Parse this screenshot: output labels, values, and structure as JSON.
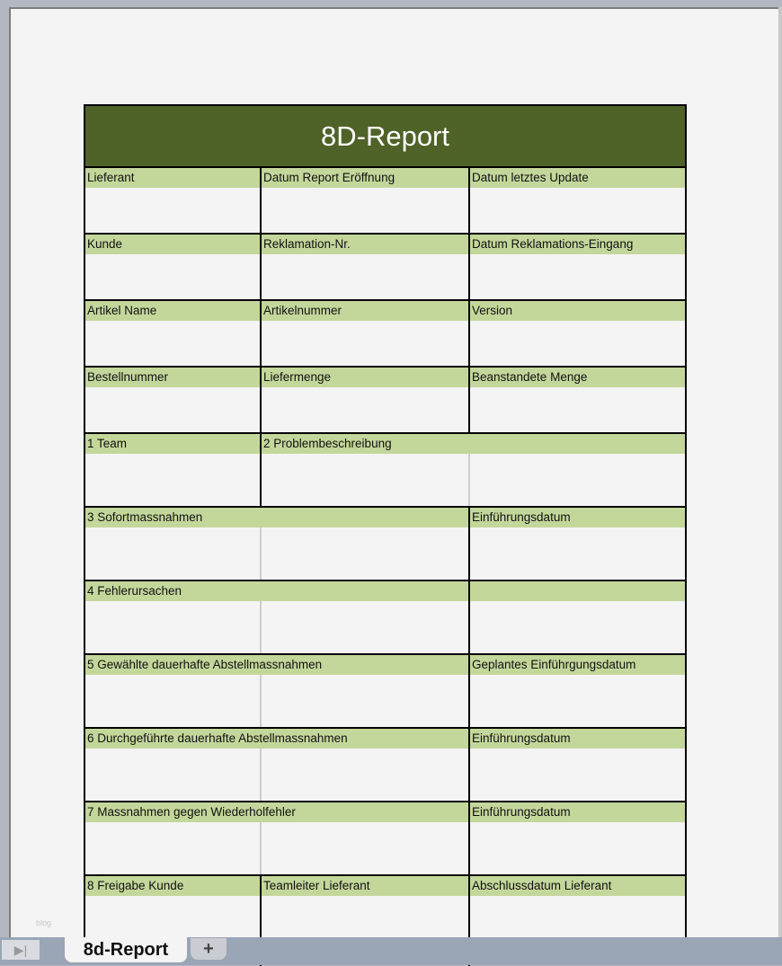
{
  "title": "8D-Report",
  "rows": [
    [
      "Lieferant",
      "Datum Report Eröffnung",
      "Datum letztes Update"
    ],
    [
      "Kunde",
      "Reklamation-Nr.",
      "Datum Reklamations-Eingang"
    ],
    [
      "Artikel Name",
      "Artikelnummer",
      "Version"
    ],
    [
      "Bestellnummer",
      "Liefermenge",
      "Beanstandete Menge"
    ],
    [
      "1 Team",
      "2 Problembeschreibung"
    ],
    [
      "3 Sofortmassnahmen",
      "Einführungsdatum"
    ],
    [
      "4 Fehlerursachen",
      ""
    ],
    [
      "5 Gewählte dauerhafte Abstellmassnahmen",
      "Geplantes Einführgungsdatum"
    ],
    [
      "6 Durchgeführte dauerhafte Abstellmassnahmen",
      "Einführungsdatum"
    ],
    [
      "7 Massnahmen gegen Wiederholfehler",
      "Einführungsdatum"
    ],
    [
      "8 Freigabe Kunde",
      "Teamleiter Lieferant",
      "Abschlussdatum Lieferant"
    ]
  ],
  "watermark": "blog",
  "sheet_tabs": {
    "nav_icon": "last-sheet-icon",
    "nav_glyph": "▶|",
    "active": "8d-Report",
    "add": "+"
  },
  "colors": {
    "header": "#4f6228",
    "label_band": "#c4d79b"
  }
}
